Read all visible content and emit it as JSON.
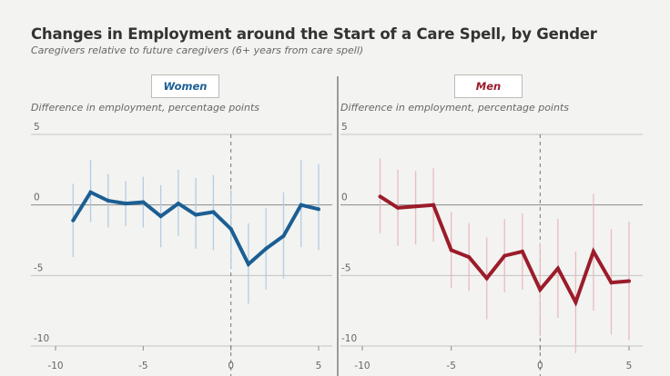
{
  "title": "Changes in Employment around the Start of a Care Spell, by Gender",
  "subtitle": "Caregivers relative to future caregivers (6+ years from care spell)",
  "colors": {
    "women": "#1b5e93",
    "men": "#9b1c2a",
    "women_ci": "#b3cde3",
    "men_ci": "#e8bcc2",
    "background": "#f3f3f1"
  },
  "chart_data": [
    {
      "type": "line",
      "panel_label": "Women",
      "ylabel": "Difference in employment, percentage points",
      "xlim": [
        -11,
        6
      ],
      "ylim": [
        -10,
        5
      ],
      "x_ticks": [
        -10,
        -5,
        0,
        5
      ],
      "x_tick_labels": [
        "-10",
        "-5",
        "0",
        "5"
      ],
      "y_ticks": [
        5,
        0,
        -5,
        -10
      ],
      "y_tick_labels": [
        "5",
        "0",
        "-5",
        "-10"
      ],
      "vertical_reference_line_x": 0,
      "x": [
        -9,
        -8,
        -7,
        -6,
        -5,
        -4,
        -3,
        -2,
        -1,
        0,
        1,
        2,
        3,
        4,
        5
      ],
      "values": [
        -1.1,
        0.9,
        0.3,
        0.1,
        0.2,
        -0.8,
        0.1,
        -0.7,
        -0.5,
        -1.7,
        -4.2,
        -3.1,
        -2.2,
        0.0,
        -0.3
      ],
      "ci_low": [
        -3.7,
        -1.2,
        -1.6,
        -1.5,
        -1.6,
        -3.0,
        -2.2,
        -3.1,
        -3.2,
        -4.5,
        -7.0,
        -6.0,
        -5.2,
        -3.0,
        -3.2
      ],
      "ci_high": [
        1.5,
        3.2,
        2.2,
        1.7,
        2.0,
        1.4,
        2.5,
        1.9,
        2.1,
        1.1,
        -1.3,
        -0.2,
        0.9,
        3.2,
        2.9
      ]
    },
    {
      "type": "line",
      "panel_label": "Men",
      "ylabel": "Difference in employment, percentage points",
      "xlim": [
        -11,
        6
      ],
      "ylim": [
        -10,
        5
      ],
      "x_ticks": [
        -10,
        -5,
        0,
        5
      ],
      "x_tick_labels": [
        "-10",
        "-5",
        "0",
        "5"
      ],
      "y_ticks": [
        5,
        0,
        -5,
        -10
      ],
      "y_tick_labels": [
        "5",
        "0",
        "-5",
        "-10"
      ],
      "vertical_reference_line_x": 0,
      "x": [
        -9,
        -8,
        -7,
        -6,
        -5,
        -4,
        -3,
        -2,
        -1,
        0,
        1,
        2,
        3,
        4,
        5
      ],
      "values": [
        0.6,
        -0.2,
        -0.1,
        0.0,
        -3.2,
        -3.7,
        -5.2,
        -3.6,
        -3.3,
        -6.0,
        -4.5,
        -6.9,
        -3.3,
        -5.5,
        -5.4
      ],
      "ci_low": [
        -2.0,
        -2.9,
        -2.8,
        -2.6,
        -5.9,
        -6.1,
        -8.1,
        -6.2,
        -6.0,
        -9.3,
        -8.0,
        -10.5,
        -7.5,
        -9.2,
        -9.6
      ],
      "ci_high": [
        3.3,
        2.5,
        2.4,
        2.6,
        -0.5,
        -1.3,
        -2.3,
        -1.0,
        -0.6,
        -2.7,
        -1.0,
        -3.3,
        0.8,
        -1.7,
        -1.2
      ]
    }
  ]
}
